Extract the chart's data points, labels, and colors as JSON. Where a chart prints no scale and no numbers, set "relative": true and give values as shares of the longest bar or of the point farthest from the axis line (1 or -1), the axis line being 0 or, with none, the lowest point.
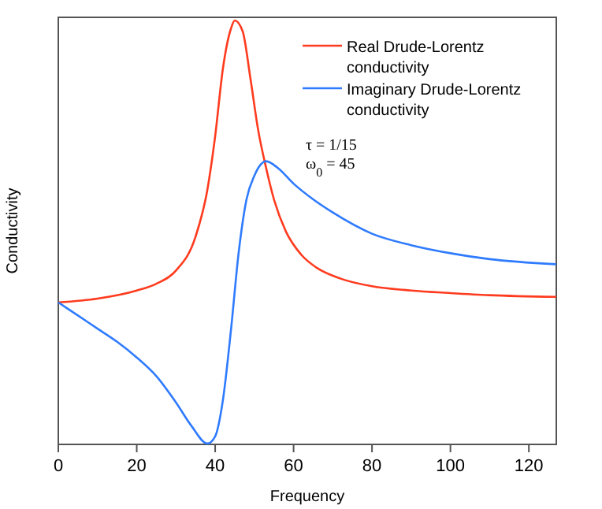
{
  "chart_data": {
    "type": "line",
    "relative": true,
    "xlabel": "Frequency",
    "ylabel": "Conductivity",
    "xlim": [
      0,
      127
    ],
    "xticks": [
      0,
      20,
      40,
      60,
      80,
      100,
      120
    ],
    "legend": "top right",
    "tick_labels": "x",
    "annotations": [
      "τ = 1/15",
      "ω$_{0}$ = 45"
    ],
    "series": [
      {
        "name": "Real Drude-Lorentz conductivity",
        "color": "#ff3b1f",
        "x": [
          0,
          10,
          20,
          25,
          30,
          35,
          38,
          40,
          42,
          44,
          45,
          47,
          49,
          51,
          53,
          55,
          58,
          62,
          66,
          72,
          80,
          90,
          100,
          110,
          127
        ],
        "values": [
          0.335,
          0.344,
          0.363,
          0.379,
          0.41,
          0.49,
          0.6,
          0.727,
          0.888,
          0.98,
          1,
          0.975,
          0.863,
          0.74,
          0.652,
          0.578,
          0.503,
          0.447,
          0.416,
          0.391,
          0.373,
          0.363,
          0.357,
          0.352,
          0.348
        ]
      },
      {
        "name": "Imaginary Drude-Lorentz conductivity",
        "color": "#2f7bff",
        "x": [
          0,
          5,
          10,
          15,
          20,
          25,
          30,
          34,
          38,
          40,
          42,
          44,
          46,
          48,
          50,
          53,
          56,
          60,
          65,
          70,
          80,
          90,
          100,
          110,
          127
        ],
        "values": [
          0.335,
          0.304,
          0.273,
          0.242,
          0.205,
          0.161,
          0.099,
          0.043,
          0.002,
          0.019,
          0.106,
          0.267,
          0.453,
          0.578,
          0.634,
          0.668,
          0.652,
          0.615,
          0.578,
          0.547,
          0.497,
          0.47,
          0.451,
          0.437,
          0.425
        ]
      }
    ]
  }
}
